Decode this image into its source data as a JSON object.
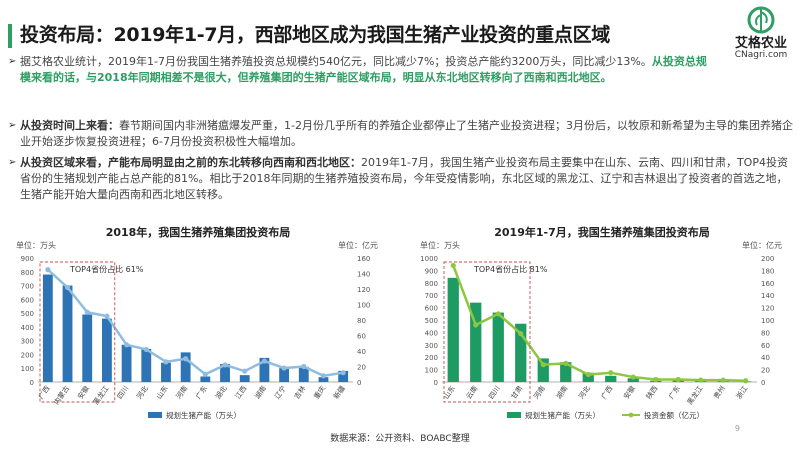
{
  "header": {
    "title": "投资布局：2019年1-7月，西部地区成为我国生猪产业投资的重点区域",
    "logo_text": "艾格农业",
    "logo_domain": "CNagri.com"
  },
  "bullet1": {
    "part1": "据艾格农业统计，2019年1-7月份我国生猪养殖投资总规模约540亿元，同比减少7%；投资总产能约3200万头，同比减少13%。",
    "part2": "从投资总规模来看的话，与2018年同期相差不是很大，但养殖集团的生猪产能区域布局，明显从东北地区转移向了西南和西北地区。"
  },
  "bullet2": {
    "bold": "从投资时间上来看：",
    "text": "春节期间国内非洲猪瘟爆发严重，1-2月份几乎所有的养殖企业都停止了生猪产业投资进程；3月份后，以牧原和新希望为主导的集团养猪企业开始逐步恢复投资进程；6-7月份投资积极性大幅增加。"
  },
  "bullet3": {
    "bold": "从投资区域来看，产能布局明显由之前的东北转移向西南和西北地区：",
    "text": "2019年1-7月，我国生猪产业投资布局主要集中在山东、云南、四川和甘肃，TOP4投资省份的生猪规划产能占总产能的81%。相比于2018年同期的生猪养殖投资布局，今年受疫情影响，东北区域的黑龙江、辽宁和吉林退出了投资者的首选之地，生猪产能开始大量向西南和西北地区转移。"
  },
  "footer": {
    "source": "数据来源：公开资料、BOABC整理",
    "page_number": "9"
  },
  "colors": {
    "accent_green": "#2e9e63",
    "bar_blue": "#2e74b5",
    "line_light_blue": "#8fbde0",
    "bar_green": "#1e9a63",
    "line_light_green": "#8ec63f"
  },
  "chart_data": [
    {
      "type": "bar",
      "title": "2018年，我国生猪养殖集团投资布局",
      "left_unit": "单位：万头",
      "right_unit": "单位：亿元",
      "categories": [
        "广西",
        "内蒙古",
        "安徽",
        "黑龙江",
        "四川",
        "河北",
        "山东",
        "河南",
        "广东",
        "湖北",
        "江西",
        "湖南",
        "辽宁",
        "吉林",
        "重庆",
        "新疆"
      ],
      "y_ticks": [
        "0",
        "100",
        "200",
        "300",
        "400",
        "500",
        "600",
        "700",
        "800",
        "900"
      ],
      "y2_ticks": [
        "0",
        "20",
        "40",
        "60",
        "80",
        "100",
        "120",
        "140",
        "160"
      ],
      "ylim": [
        0,
        900
      ],
      "y2lim": [
        0,
        160
      ],
      "series": [
        {
          "name": "规划生猪产能（万头）",
          "axis": "left",
          "kind": "bar",
          "values": [
            780,
            700,
            490,
            460,
            270,
            240,
            140,
            215,
            40,
            130,
            50,
            175,
            100,
            110,
            35,
            80
          ]
        },
        {
          "name": "",
          "axis": "right",
          "kind": "line",
          "values": [
            145,
            122,
            90,
            85,
            48,
            42,
            26,
            30,
            10,
            22,
            14,
            27,
            18,
            20,
            8,
            12
          ]
        }
      ],
      "legend": [
        "规划生猪产能（万头）"
      ],
      "annotation": "TOP4省份占比 61%"
    },
    {
      "type": "bar",
      "title": "2019年1-7月，我国生猪养殖集团投资布局",
      "left_unit": "单位：万头",
      "right_unit": "单位：亿元",
      "categories": [
        "山东",
        "云南",
        "四川",
        "甘肃",
        "河南",
        "湖南",
        "河北",
        "广西",
        "安徽",
        "陕西",
        "广东",
        "黑龙江",
        "贵州",
        "浙江"
      ],
      "y_ticks": [
        "0",
        "100",
        "200",
        "300",
        "400",
        "500",
        "600",
        "700",
        "800",
        "900",
        "1000"
      ],
      "y2_ticks": [
        "0",
        "20",
        "40",
        "60",
        "80",
        "100",
        "120",
        "140",
        "160",
        "180",
        "200"
      ],
      "ylim": [
        0,
        1000
      ],
      "y2lim": [
        0,
        200
      ],
      "series": [
        {
          "name": "规划生猪产能（万头）",
          "axis": "left",
          "kind": "bar",
          "values": [
            840,
            640,
            560,
            470,
            190,
            160,
            75,
            50,
            30,
            10,
            12,
            10,
            8,
            5
          ]
        },
        {
          "name": "投资金额（亿元）",
          "axis": "right",
          "kind": "line",
          "values": [
            188,
            92,
            110,
            78,
            28,
            30,
            12,
            15,
            8,
            4,
            4,
            3,
            3,
            2
          ]
        }
      ],
      "legend": [
        "规划生猪产能（万头）",
        "投资金额（亿元）"
      ],
      "annotation": "TOP4省份占比 81%"
    }
  ]
}
